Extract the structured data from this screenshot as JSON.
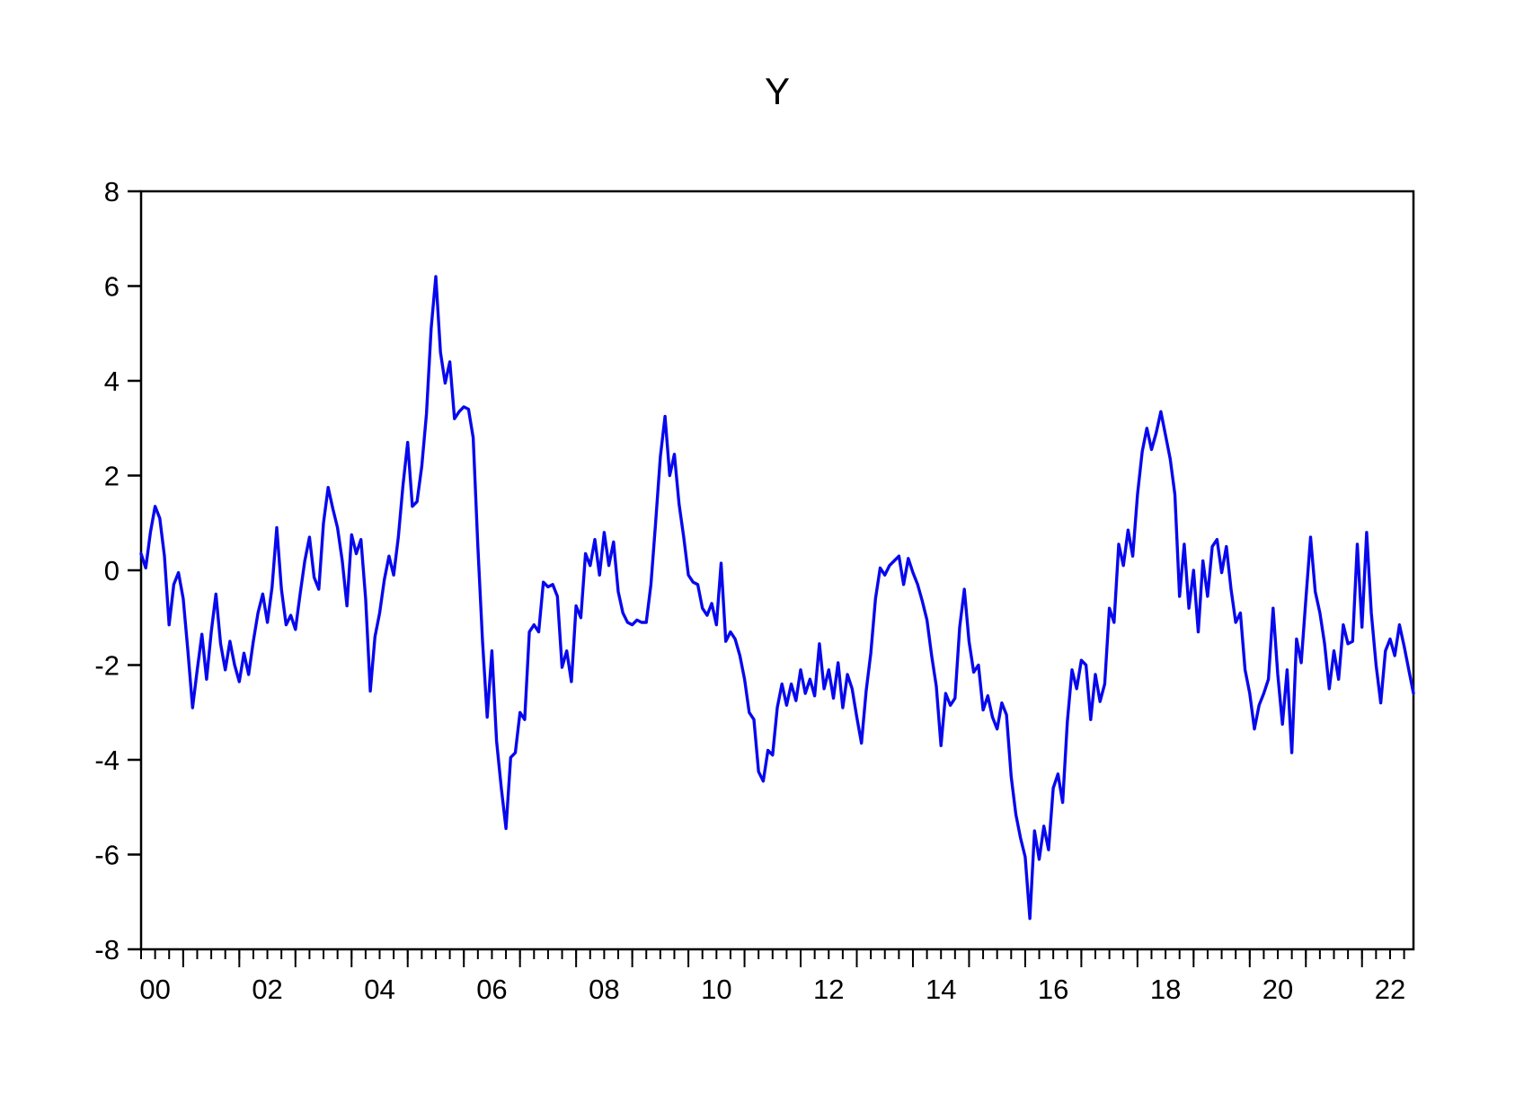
{
  "title": "Y",
  "colors": {
    "line": "#0808ee",
    "axis": "#000000",
    "background": "#ffffff"
  },
  "chart_data": {
    "type": "line",
    "title": "Y",
    "series_name": "Y",
    "frequency": "monthly",
    "x_start": "1999M10",
    "x_end": "2022M06",
    "xlabel": "",
    "ylabel": "",
    "ylim": [
      -8,
      8
    ],
    "y_ticks": [
      8,
      6,
      4,
      2,
      0,
      -2,
      -4,
      -6,
      -8
    ],
    "x_tick_labels": [
      "00",
      "02",
      "04",
      "06",
      "08",
      "10",
      "12",
      "14",
      "16",
      "18",
      "20",
      "22"
    ],
    "grid": false,
    "legend": "none",
    "values": [
      0.35,
      0.05,
      0.8,
      1.35,
      1.1,
      0.3,
      -1.15,
      -0.3,
      -0.05,
      -0.6,
      -1.7,
      -2.9,
      -2.1,
      -1.35,
      -2.3,
      -1.3,
      -0.5,
      -1.55,
      -2.1,
      -1.5,
      -2.0,
      -2.35,
      -1.75,
      -2.2,
      -1.5,
      -0.9,
      -0.5,
      -1.1,
      -0.35,
      0.9,
      -0.4,
      -1.15,
      -0.95,
      -1.25,
      -0.5,
      0.2,
      0.7,
      -0.15,
      -0.4,
      1.0,
      1.75,
      1.3,
      0.9,
      0.2,
      -0.75,
      0.75,
      0.35,
      0.65,
      -0.6,
      -2.55,
      -1.4,
      -0.9,
      -0.2,
      0.3,
      -0.1,
      0.7,
      1.8,
      2.7,
      1.35,
      1.45,
      2.2,
      3.3,
      5.1,
      6.2,
      4.6,
      3.95,
      4.4,
      3.2,
      3.35,
      3.45,
      3.4,
      2.8,
      0.5,
      -1.5,
      -3.1,
      -1.7,
      -3.6,
      -4.6,
      -5.45,
      -3.95,
      -3.85,
      -3.0,
      -3.15,
      -1.3,
      -1.15,
      -1.3,
      -0.25,
      -0.35,
      -0.3,
      -0.55,
      -2.05,
      -1.7,
      -2.35,
      -0.75,
      -1.0,
      0.35,
      0.1,
      0.65,
      -0.1,
      0.8,
      0.1,
      0.6,
      -0.45,
      -0.9,
      -1.1,
      -1.15,
      -1.05,
      -1.1,
      -1.1,
      -0.3,
      1.0,
      2.4,
      3.25,
      2.0,
      2.45,
      1.4,
      0.7,
      -0.1,
      -0.25,
      -0.3,
      -0.8,
      -0.95,
      -0.7,
      -1.15,
      0.15,
      -1.5,
      -1.3,
      -1.45,
      -1.8,
      -2.3,
      -3.0,
      -3.15,
      -4.25,
      -4.45,
      -3.8,
      -3.9,
      -2.9,
      -2.4,
      -2.85,
      -2.4,
      -2.75,
      -2.1,
      -2.6,
      -2.3,
      -2.65,
      -1.55,
      -2.5,
      -2.1,
      -2.7,
      -1.95,
      -2.9,
      -2.2,
      -2.5,
      -3.1,
      -3.65,
      -2.55,
      -1.75,
      -0.6,
      0.05,
      -0.1,
      0.1,
      0.2,
      0.3,
      -0.3,
      0.25,
      -0.05,
      -0.3,
      -0.65,
      -1.05,
      -1.8,
      -2.45,
      -3.7,
      -2.6,
      -2.85,
      -2.7,
      -1.2,
      -0.4,
      -1.5,
      -2.15,
      -2.0,
      -2.95,
      -2.65,
      -3.1,
      -3.35,
      -2.8,
      -3.05,
      -4.35,
      -5.15,
      -5.65,
      -6.05,
      -7.35,
      -5.5,
      -6.1,
      -5.4,
      -5.9,
      -4.6,
      -4.3,
      -4.9,
      -3.2,
      -2.1,
      -2.5,
      -1.9,
      -2.0,
      -3.15,
      -2.2,
      -2.77,
      -2.4,
      -0.8,
      -1.1,
      0.55,
      0.1,
      0.85,
      0.3,
      1.6,
      2.5,
      3.0,
      2.55,
      2.9,
      3.35,
      2.85,
      2.35,
      1.6,
      -0.55,
      0.55,
      -0.8,
      0.0,
      -1.3,
      0.2,
      -0.55,
      0.5,
      0.65,
      -0.05,
      0.5,
      -0.4,
      -1.1,
      -0.9,
      -2.1,
      -2.6,
      -3.35,
      -2.85,
      -2.6,
      -2.3,
      -0.8,
      -2.2,
      -3.25,
      -2.1,
      -3.85,
      -1.45,
      -1.95,
      -0.6,
      0.7,
      -0.45,
      -0.9,
      -1.55,
      -2.5,
      -1.7,
      -2.3,
      -1.15,
      -1.55,
      -1.5,
      0.55,
      -1.2,
      0.8,
      -0.9,
      -2.0,
      -2.8,
      -1.7,
      -1.45,
      -1.8,
      -1.15,
      -1.6,
      -2.1,
      -2.6
    ]
  }
}
